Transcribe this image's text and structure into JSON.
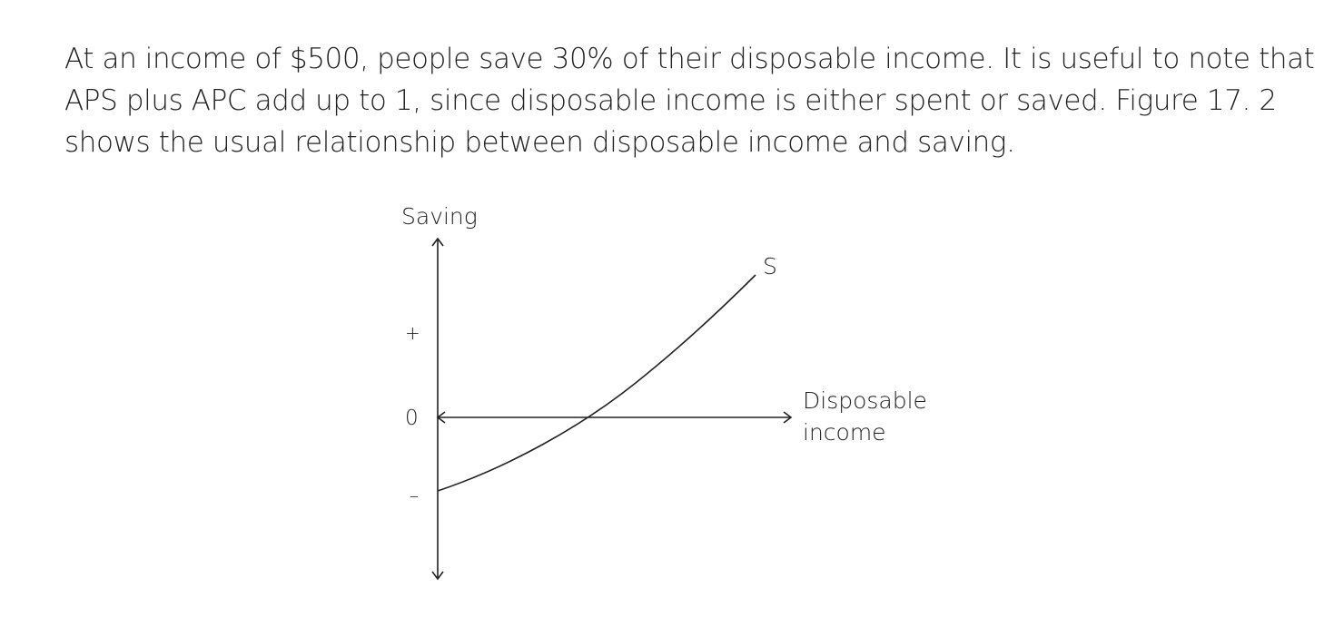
{
  "text": {
    "lines": [
      "At an income of $500, people save 30% of their disposable income. It is useful to note that",
      "APS plus APC add up to 1, since disposable income is either spent or saved. Figure 17. 2",
      "shows the usual relationship between disposable income and saving."
    ]
  },
  "figure": {
    "y_axis_label": "Saving",
    "x_axis_label_line1": "Disposable",
    "x_axis_label_line2": "income",
    "plus_mark": "+",
    "zero_mark": "0",
    "minus_mark": "–",
    "curve_label": "S",
    "line_color": "#222222"
  }
}
